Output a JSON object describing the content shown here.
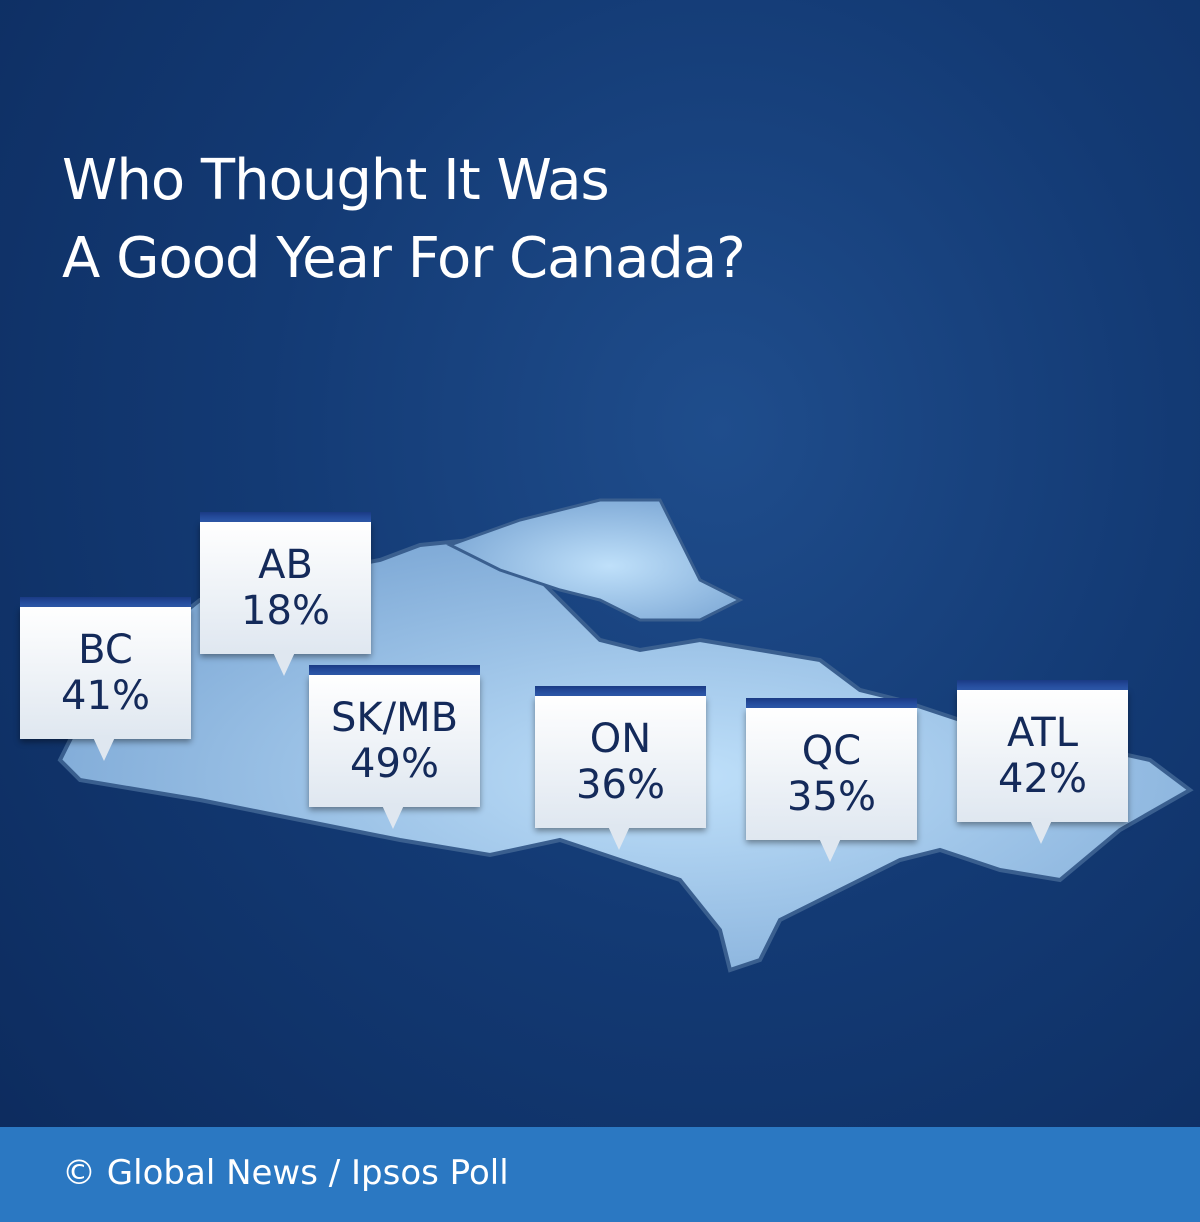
{
  "header": {
    "title_lines": [
      "Who Thought It Was",
      "A Good Year For Canada?"
    ]
  },
  "regions": [
    {
      "label": "BC",
      "value": "41%"
    },
    {
      "label": "AB",
      "value": "18%"
    },
    {
      "label": "SK/MB",
      "value": "49%"
    },
    {
      "label": "ON",
      "value": "36%"
    },
    {
      "label": "QC",
      "value": "35%"
    },
    {
      "label": "ATL",
      "value": "42%"
    }
  ],
  "footer": {
    "credit": "© Global News / Ipsos Poll"
  }
}
